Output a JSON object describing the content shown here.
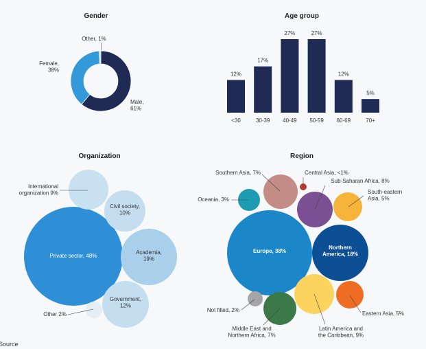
{
  "source_label": "Source",
  "chart_data": [
    {
      "type": "pie",
      "title": "Gender",
      "slices": [
        {
          "label": "Male,",
          "value_label": "61%",
          "value": 61,
          "color": "#1f2a55"
        },
        {
          "label": "Female,",
          "value_label": "38%",
          "value": 38,
          "color": "#3399d8"
        },
        {
          "label": "Other,",
          "value_label": "1%",
          "value": 1,
          "color": "#b9d8ec"
        }
      ]
    },
    {
      "type": "bar",
      "title": "Age group",
      "categories": [
        "<30",
        "30-39",
        "40-49",
        "50-59",
        "60-69",
        "70+"
      ],
      "values": [
        12,
        17,
        27,
        27,
        12,
        5
      ],
      "value_labels": [
        "12%",
        "17%",
        "27%",
        "27%",
        "12%",
        "5%"
      ],
      "color": "#1f2a55",
      "ylim": [
        0,
        27
      ]
    },
    {
      "type": "bubble",
      "title": "Organization",
      "items": [
        {
          "label": "Private sector,",
          "value_label": "48%",
          "value": 48,
          "color": "#2f8fd6",
          "text_color": "#ffffff"
        },
        {
          "label": "Academia,",
          "value_label": "19%",
          "value": 19,
          "color": "#a9cfea",
          "text_color": "#333333"
        },
        {
          "label": "Government,",
          "value_label": "12%",
          "value": 12,
          "color": "#c5deef",
          "text_color": "#333333"
        },
        {
          "label": "Civil society,",
          "value_label": "10%",
          "value": 10,
          "color": "#c5deef",
          "text_color": "#333333"
        },
        {
          "label": "International organization",
          "value_label": "9%",
          "value": 9,
          "color": "#c9e0f0",
          "text_color": "#333333"
        },
        {
          "label": "Other",
          "value_label": "2%",
          "value": 2,
          "color": "#e6eef5",
          "text_color": "#333333"
        }
      ]
    },
    {
      "type": "bubble",
      "title": "Region",
      "items": [
        {
          "label": "Europe,",
          "value_label": "38%",
          "value": 38,
          "color": "#1b86c8",
          "text_color": "#ffffff"
        },
        {
          "label": "Northern America,",
          "value_label": "18%",
          "value": 18,
          "color": "#0d4f94",
          "text_color": "#ffffff"
        },
        {
          "label": "Latin America and the Caribbean,",
          "value_label": "9%",
          "value": 9,
          "color": "#fdd35f",
          "text_color": "#333333"
        },
        {
          "label": "Sub-Saharan Africa,",
          "value_label": "8%",
          "value": 8,
          "color": "#7b4f94",
          "text_color": "#333333"
        },
        {
          "label": "Southern Asia,",
          "value_label": "7%",
          "value": 7,
          "color": "#c48c86",
          "text_color": "#333333"
        },
        {
          "label": "Middle East and Northern Africa,",
          "value_label": "7%",
          "value": 7,
          "color": "#3b7a48",
          "text_color": "#333333"
        },
        {
          "label": "South-eastern Asia,",
          "value_label": "5%",
          "value": 5,
          "color": "#f7b43a",
          "text_color": "#333333"
        },
        {
          "label": "Eastern Asia,",
          "value_label": "5%",
          "value": 5,
          "color": "#ef6d22",
          "text_color": "#333333"
        },
        {
          "label": "Oceania,",
          "value_label": "3%",
          "value": 3,
          "color": "#1d9bb0",
          "text_color": "#333333"
        },
        {
          "label": "Not filled,",
          "value_label": "2%",
          "value": 2,
          "color": "#a5a5a5",
          "text_color": "#333333"
        },
        {
          "label": "Central Asia,",
          "value_label": "<1%",
          "value": 0.5,
          "color": "#b83a2e",
          "text_color": "#333333"
        }
      ]
    }
  ]
}
